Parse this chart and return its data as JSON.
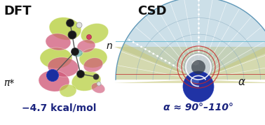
{
  "background_color": "#ffffff",
  "left_panel": {
    "title": "DFT",
    "subtitle": "−4.7 kcal/mol",
    "label_pi_star": "π*",
    "label_n": "n",
    "title_fontsize": 13,
    "subtitle_fontsize": 10,
    "label_fontsize": 10
  },
  "right_panel": {
    "title": "CSD",
    "subtitle": "α ≈ 90°–110°",
    "label_alpha": "α",
    "title_fontsize": 13,
    "subtitle_fontsize": 10,
    "label_fontsize": 11
  },
  "colors": {
    "title": "#101010",
    "subtitle": "#1a237e",
    "label": "#101010",
    "green_lobe": "#b8d040",
    "pink_lobe": "#d05878",
    "blue_atom": "#1a2ea0",
    "black_atom": "#181818",
    "white_atom": "#e0e0e0",
    "teal_lobe": "#50a8a0",
    "fan_blue": "#a8c8d8",
    "fan_yellow": "#c8c878",
    "red_circle": "#c82828",
    "molecule_blue": "#1428a0",
    "cyan_line": "#60b8d0",
    "red_line": "#c03030"
  }
}
